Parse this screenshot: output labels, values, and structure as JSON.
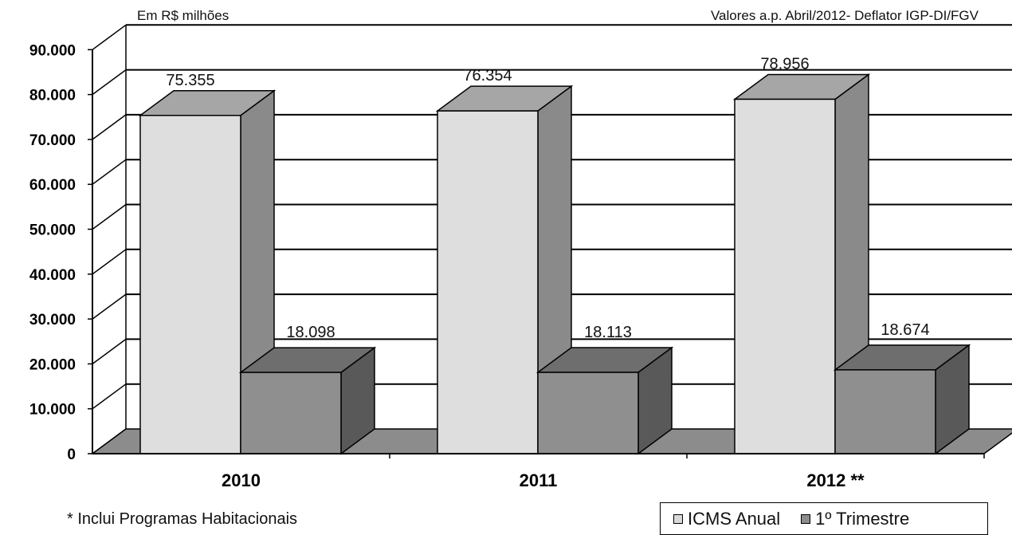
{
  "chart_data": {
    "type": "bar",
    "categories": [
      "2010",
      "2011",
      "2012 **"
    ],
    "series": [
      {
        "name": "ICMS Anual",
        "values": [
          75355,
          76354,
          78956
        ],
        "labels": [
          "75.355",
          "76.354",
          "78.956"
        ],
        "color": "#d9d9d9"
      },
      {
        "name": "1º Trimestre",
        "values": [
          18098,
          18113,
          18674
        ],
        "labels": [
          "18.098",
          "18.113",
          "18.674"
        ],
        "color": "#8c8c8c"
      }
    ],
    "yticks": [
      "0",
      "10.000",
      "20.000",
      "30.000",
      "40.000",
      "50.000",
      "60.000",
      "70.000",
      "80.000",
      "90.000"
    ],
    "ylim": [
      0,
      90000
    ],
    "ylabel": "Em R$ milhões",
    "note_top_right": "Valores a.p. Abril/2012- Deflator IGP-DI/FGV",
    "grid": true,
    "legend": "bottom-right",
    "three_d": true
  },
  "footnote": "* Inclui Programas Habitacionais"
}
